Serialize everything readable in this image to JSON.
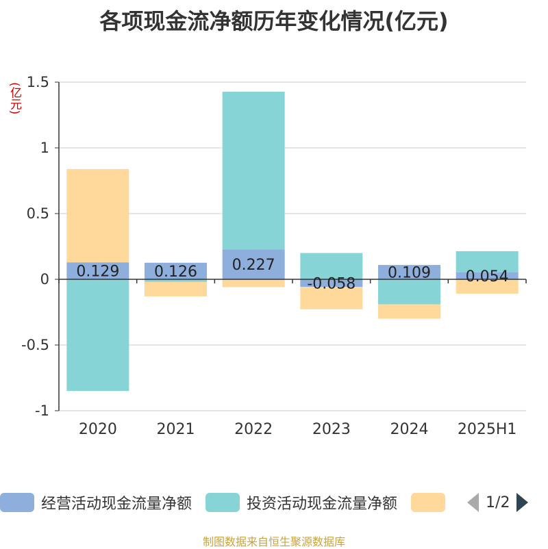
{
  "title": "各项现金流净额历年变化情况(亿元)",
  "unit_label": "(亿元)",
  "source": "制图数据来自恒生聚源数据库",
  "legend": {
    "items": [
      {
        "label": "经营活动现金流量净额",
        "color": "#8eaedc"
      },
      {
        "label": "投资活动现金流量净额",
        "color": "#86d4d6"
      },
      {
        "label": "",
        "color": "#ffd89b"
      }
    ],
    "page": "1/2"
  },
  "chart_data": {
    "type": "bar",
    "stacked": true,
    "categories": [
      "2020",
      "2021",
      "2022",
      "2023",
      "2024",
      "2025H1"
    ],
    "series": [
      {
        "name": "经营活动现金流量净额",
        "color": "#8eaedc",
        "values": [
          0.129,
          0.126,
          0.227,
          -0.058,
          0.109,
          0.054
        ]
      },
      {
        "name": "投资活动现金流量净额",
        "color": "#86d4d6",
        "values": [
          -0.85,
          -0.02,
          1.2,
          0.2,
          -0.19,
          0.16
        ]
      },
      {
        "name": "",
        "color": "#ffd89b",
        "values": [
          0.71,
          -0.11,
          -0.06,
          -0.17,
          -0.11,
          -0.11
        ]
      }
    ],
    "data_labels": [
      "0.129",
      "0.126",
      "0.227",
      "-0.058",
      "0.109",
      "0.054"
    ],
    "yticks": [
      "1.5",
      "1",
      "0.5",
      "0",
      "-0.5",
      "-1"
    ],
    "ylim": [
      -1,
      1.5
    ],
    "grid": true,
    "legend_position": "bottom"
  }
}
